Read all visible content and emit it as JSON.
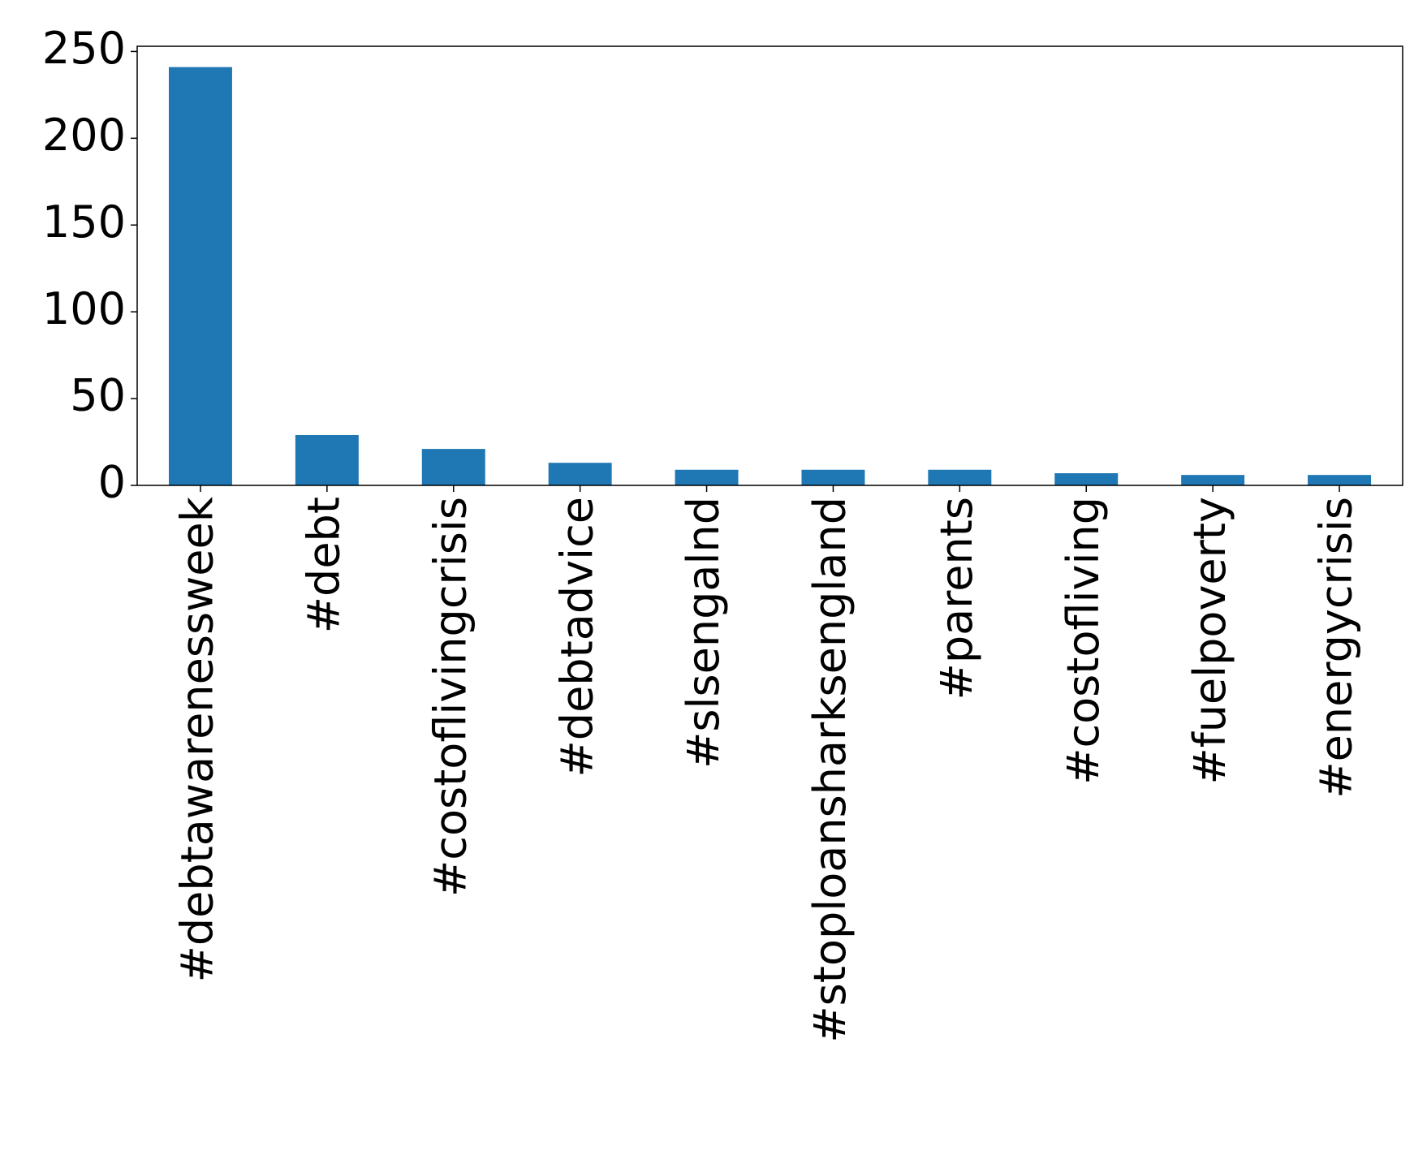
{
  "chart_data": {
    "type": "bar",
    "categories": [
      "#debtawarenessweek",
      "#debt",
      "#costoflivingcrisis",
      "#debtadvice",
      "#slsengalnd",
      "#stoploansharksengland",
      "#parents",
      "#costofliving",
      "#fuelpoverty",
      "#energycrisis"
    ],
    "values": [
      241,
      29,
      21,
      13,
      9,
      9,
      9,
      7,
      6,
      6
    ],
    "color": "#1f77b4",
    "ylim": [
      0,
      253
    ],
    "yticks": [
      0,
      50,
      100,
      150,
      200,
      250
    ]
  }
}
